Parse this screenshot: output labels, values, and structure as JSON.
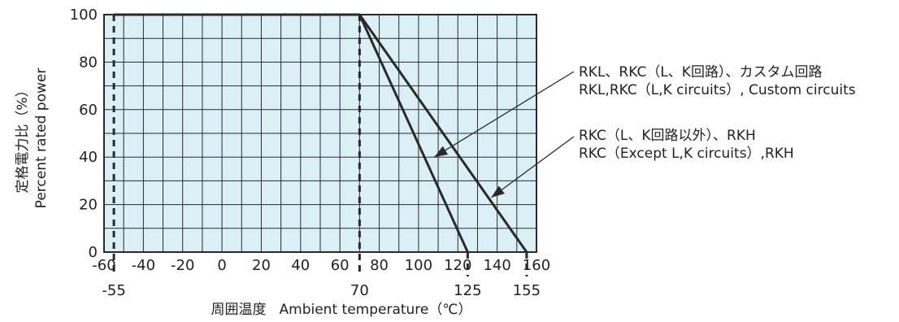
{
  "chart_data": {
    "type": "line",
    "xlabel": {
      "ja": "周囲温度",
      "en": "Ambient temperature（℃）"
    },
    "ylabel": {
      "ja": "定格電力比（%）",
      "en": "Percent rated power"
    },
    "xlim": [
      -60,
      160
    ],
    "ylim": [
      0,
      100
    ],
    "x_ticks": [
      -60,
      -40,
      -20,
      0,
      20,
      40,
      60,
      80,
      100,
      120,
      140,
      160
    ],
    "y_ticks": [
      0,
      20,
      40,
      60,
      80,
      100
    ],
    "special_x_ticks": [
      -55,
      70,
      125,
      155
    ],
    "grid": true,
    "background": "#dbeff6",
    "line_color": "#2a2a2a",
    "series": [
      {
        "x": [
          -55,
          70,
          125
        ],
        "y": [
          100,
          100,
          0
        ]
      },
      {
        "x": [
          -55,
          70,
          155
        ],
        "y": [
          100,
          100,
          0
        ]
      }
    ],
    "annotations": [
      {
        "lines": [
          "RKL、RKC（L、K回路）、カスタム回路",
          "RKL,RKC（L,K circuits）, Custom circuits"
        ],
        "arrow_to": [
          108,
          40
        ]
      },
      {
        "lines": [
          "RKC（L、K回路以外）、RKH",
          "RKC（Except L,K circuits）,RKH"
        ],
        "arrow_to": [
          137,
          23
        ]
      }
    ]
  }
}
